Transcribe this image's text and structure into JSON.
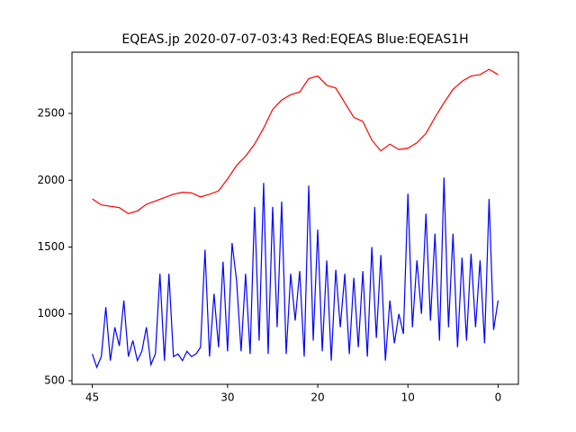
{
  "chart_data": {
    "type": "line",
    "title": "EQEAS.jp 2020-07-07-03:43 Red:EQEAS Blue:EQEAS1H",
    "xlim": [
      47.25,
      -2.25
    ],
    "xticks": [
      45,
      30,
      20,
      10,
      0
    ],
    "ylim": [
      473,
      2958
    ],
    "yticks": [
      500,
      1000,
      1500,
      2000,
      2500
    ],
    "grid": false,
    "series": [
      {
        "color": "#ff0000",
        "x": [
          45,
          44,
          43,
          42,
          41,
          40,
          39,
          38,
          37,
          36,
          35,
          34,
          33,
          32,
          31,
          30,
          29,
          28,
          27,
          26,
          25,
          24,
          23,
          22,
          21,
          20,
          19,
          18,
          17,
          16,
          15,
          14,
          13,
          12,
          11,
          10,
          9,
          8,
          7,
          6,
          5,
          4,
          3,
          2,
          1,
          0
        ],
        "values": [
          1860,
          1815,
          1805,
          1795,
          1750,
          1770,
          1820,
          1845,
          1870,
          1895,
          1910,
          1905,
          1875,
          1895,
          1920,
          2010,
          2110,
          2180,
          2270,
          2390,
          2530,
          2600,
          2640,
          2660,
          2760,
          2780,
          2710,
          2690,
          2580,
          2470,
          2440,
          2300,
          2220,
          2270,
          2230,
          2240,
          2280,
          2350,
          2470,
          2580,
          2680,
          2740,
          2780,
          2790,
          2830,
          2790
        ]
      },
      {
        "color": "#0000ff",
        "x": [
          45,
          44.5,
          44,
          43.5,
          43,
          42.5,
          42,
          41.5,
          41,
          40.5,
          40,
          39.5,
          39,
          38.5,
          38,
          37.5,
          37,
          36.5,
          36,
          35.5,
          35,
          34.5,
          34,
          33.5,
          33,
          32.5,
          32,
          31.5,
          31,
          30.5,
          30,
          29.5,
          29,
          28.5,
          28,
          27.5,
          27,
          26.5,
          26,
          25.5,
          25,
          24.5,
          24,
          23.5,
          23,
          22.5,
          22,
          21.5,
          21,
          20.5,
          20,
          19.5,
          19,
          18.5,
          18,
          17.5,
          17,
          16.5,
          16,
          15.5,
          15,
          14.5,
          14,
          13.5,
          13,
          12.5,
          12,
          11.5,
          11,
          10.5,
          10,
          9.5,
          9,
          8.5,
          8,
          7.5,
          7,
          6.5,
          6,
          5.5,
          5,
          4.5,
          4,
          3.5,
          3,
          2.5,
          2,
          1.5,
          1,
          0.5,
          0
        ],
        "values": [
          700,
          600,
          680,
          1050,
          650,
          900,
          760,
          1100,
          680,
          800,
          650,
          720,
          900,
          620,
          700,
          1300,
          650,
          1300,
          680,
          700,
          650,
          720,
          680,
          700,
          750,
          1480,
          680,
          1150,
          750,
          1390,
          720,
          1530,
          1250,
          720,
          1300,
          700,
          1800,
          800,
          1980,
          700,
          1800,
          900,
          1840,
          700,
          1300,
          950,
          1320,
          680,
          1960,
          800,
          1630,
          720,
          1400,
          650,
          1330,
          900,
          1300,
          700,
          1270,
          750,
          1320,
          680,
          1500,
          820,
          1440,
          650,
          1100,
          780,
          1000,
          850,
          1900,
          900,
          1400,
          1000,
          1750,
          950,
          1600,
          800,
          2020,
          900,
          1600,
          750,
          1420,
          800,
          1450,
          900,
          1400,
          780,
          1860,
          880,
          1100
        ]
      }
    ]
  }
}
